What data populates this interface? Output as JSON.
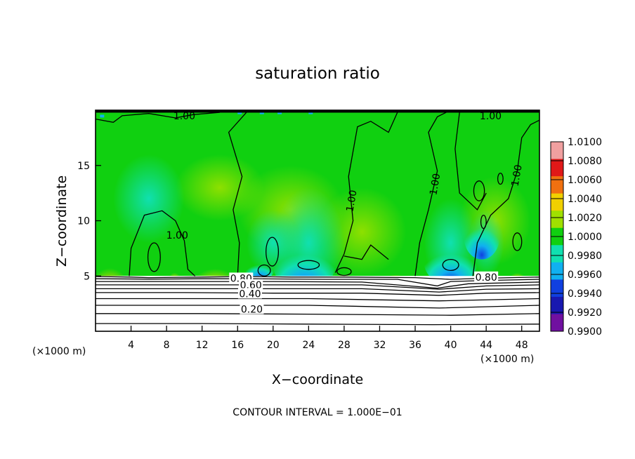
{
  "chart_data": {
    "type": "heatmap",
    "title": "saturation ratio",
    "xlabel": "X−coordinate",
    "ylabel": "Z−coordinate",
    "x_unit_left": "(×1000 m)",
    "x_unit_right": "(×1000 m)",
    "xlim": [
      0,
      50
    ],
    "ylim": [
      0,
      20
    ],
    "xticks": [
      4,
      8,
      12,
      16,
      20,
      24,
      28,
      32,
      36,
      40,
      44,
      48
    ],
    "yticks": [
      5,
      10,
      15
    ],
    "note": "CONTOUR INTERVAL = 1.000E−01",
    "colorbar": {
      "levels": [
        "1.0100",
        "1.0080",
        "1.0060",
        "1.0040",
        "1.0020",
        "1.0000",
        "0.9980",
        "0.9960",
        "0.9940",
        "0.9920",
        "0.9900"
      ],
      "colors": [
        "#f0a0a0",
        "#e01818",
        "#f07010",
        "#f0d000",
        "#a0e000",
        "#10d010",
        "#10e0b0",
        "#10b0f0",
        "#1040e0",
        "#1818b0",
        "#7010a0"
      ]
    },
    "contour_labels": [
      {
        "text": "1.00",
        "x": 10.0,
        "y": 19.5
      },
      {
        "text": "1.00",
        "x": 44.5,
        "y": 19.5
      },
      {
        "text": "1.00",
        "x": 9.2,
        "y": 8.7
      },
      {
        "text": "1.00",
        "x": 28.8,
        "y": 11.8
      },
      {
        "text": "1.00",
        "x": 38.2,
        "y": 13.3
      },
      {
        "text": "1.00",
        "x": 47.4,
        "y": 14.1
      },
      {
        "text": "0.80",
        "x": 44.0,
        "y": 4.9
      },
      {
        "text": "0.80",
        "x": 16.4,
        "y": 4.8
      },
      {
        "text": "0.60",
        "x": 17.5,
        "y": 4.2
      },
      {
        "text": "0.40",
        "x": 17.4,
        "y": 3.4
      },
      {
        "text": "0.20",
        "x": 17.6,
        "y": 2.0
      }
    ],
    "grid": false,
    "legend": "right (colorbar)"
  }
}
